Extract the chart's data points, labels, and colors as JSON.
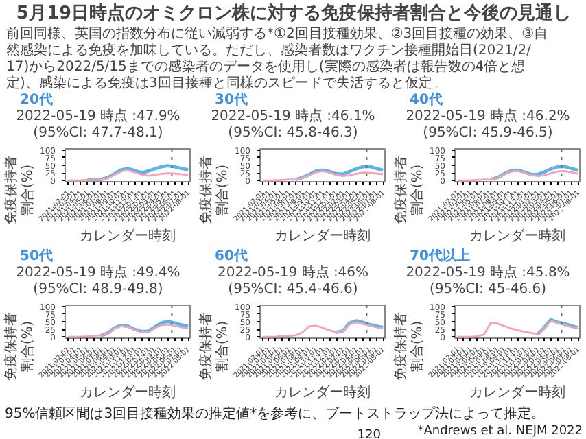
{
  "chart_data": [
    {
      "type": "other",
      "title": "5月19日時点のオミクロン株に対する免疫保持者割合と今後の見通し",
      "subtitle": "前回同様、英国の指数分布に従い減弱する*①2回目接種効果、②3回目接種の効果、③自然感染による免疫を加味している。ただし、感染者数はワクチン接種開始日(2021/2/17)から2022/5/15までの感染者のデータを使用し(実際の感染者は報告数の4倍と想定)、感染による免疫は3回目接種と同様のスピードで失活すると仮定。",
      "annotations": [
        "95%信頼区間は3回目接種効果の推定値*を参考に、ブートストラップ法によって推定。",
        "*Andrews et al. NEJM 2022",
        "120"
      ]
    },
    {
      "type": "line",
      "title": "20代",
      "subtitle": "2022-05-19 時点 :47.9% (95%CI: 47.7-48.1)",
      "xlabel": "カレンダー時刻",
      "ylabel": "免疫保持者割合(%)",
      "x": [
        "2021-02-01",
        "2021-03-01",
        "2021-04-01",
        "2021-05-01",
        "2021-06-01",
        "2021-07-01",
        "2021-08-01",
        "2021-09-01",
        "2021-10-01",
        "2021-11-01",
        "2021-12-01",
        "2022-01-01",
        "2022-02-01",
        "2022-03-01",
        "2022-04-01",
        "2022-05-01",
        "2022-06-01",
        "2022-07-01",
        "2022-08-01"
      ],
      "series": [
        {
          "color": "#5ab4e8",
          "values": [
            null,
            null,
            null,
            2,
            3,
            3.5,
            10,
            22,
            35,
            39,
            33,
            25.5,
            31,
            38,
            45,
            48.5,
            45,
            40,
            35
          ]
        },
        {
          "color": "#f4a3b6",
          "values": [
            0,
            0,
            1,
            2,
            2.5,
            3,
            8,
            19,
            30,
            34,
            27,
            20,
            16,
            18,
            22,
            24,
            23,
            21,
            18.5
          ]
        }
      ],
      "xlim": [
        "2021-01-20",
        "2022-08-10"
      ],
      "ylim": [
        -4,
        104
      ],
      "yticks": [
        0,
        25,
        50,
        75,
        100
      ],
      "xticks": [
        "2021-02-01",
        "2021-03-01",
        "2021-04-01",
        "2021-05-01",
        "2021-06-01",
        "2021-07-01",
        "2021-08-01",
        "2021-09-01",
        "2021-10-01",
        "2021-11-01",
        "2021-12-01",
        "2022-01-01",
        "2022-02-01",
        "2022-03-01",
        "2022-04-01",
        "2022-05-01",
        "2022-06-01",
        "2022-07-01",
        "2022-08-01"
      ],
      "ref_lines": [
        {
          "axis": "x",
          "value": "2022-05-19",
          "color": "#666666",
          "line_style": "dotted"
        }
      ],
      "grid": false
    },
    {
      "type": "line",
      "title": "30代",
      "subtitle": "2022-05-19 時点 :46.1% (95%CI: 45.8-46.3)",
      "xlabel": "カレンダー時刻",
      "ylabel": "免疫保持者割合(%)",
      "x": [
        "2021-02-01",
        "2021-03-01",
        "2021-04-01",
        "2021-05-01",
        "2021-06-01",
        "2021-07-01",
        "2021-08-01",
        "2021-09-01",
        "2021-10-01",
        "2021-11-01",
        "2021-12-01",
        "2022-01-01",
        "2022-02-01",
        "2022-03-01",
        "2022-04-01",
        "2022-05-01",
        "2022-06-01",
        "2022-07-01",
        "2022-08-01"
      ],
      "series": [
        {
          "color": "#5ab4e8",
          "values": [
            null,
            null,
            null,
            null,
            null,
            4,
            10,
            20,
            31,
            34,
            30,
            22,
            21,
            29,
            38,
            45,
            46,
            40,
            34
          ]
        },
        {
          "color": "#f4a3b6",
          "values": [
            0,
            0,
            1,
            2,
            3.5,
            4,
            9,
            18,
            27,
            31,
            26,
            18,
            15,
            17,
            22,
            26,
            25,
            23,
            21
          ]
        }
      ],
      "xlim": [
        "2021-01-20",
        "2022-08-10"
      ],
      "ylim": [
        -4,
        104
      ],
      "yticks": [
        0,
        25,
        50,
        75,
        100
      ],
      "xticks": [
        "2021-02-01",
        "2021-03-01",
        "2021-04-01",
        "2021-05-01",
        "2021-06-01",
        "2021-07-01",
        "2021-08-01",
        "2021-09-01",
        "2021-10-01",
        "2021-11-01",
        "2021-12-01",
        "2022-01-01",
        "2022-02-01",
        "2022-03-01",
        "2022-04-01",
        "2022-05-01",
        "2022-06-01",
        "2022-07-01",
        "2022-08-01"
      ],
      "ref_lines": [
        {
          "axis": "x",
          "value": "2022-05-19",
          "color": "#666666",
          "line_style": "dotted"
        }
      ],
      "grid": false
    },
    {
      "type": "line",
      "title": "40代",
      "subtitle": "2022-05-19 時点 :46.2% (95%CI: 45.9-46.5)",
      "xlabel": "カレンダー時刻",
      "ylabel": "免疫保持者割合(%)",
      "x": [
        "2021-02-01",
        "2021-03-01",
        "2021-04-01",
        "2021-05-01",
        "2021-06-01",
        "2021-07-01",
        "2021-08-01",
        "2021-09-01",
        "2021-10-01",
        "2021-11-01",
        "2021-12-01",
        "2022-01-01",
        "2022-02-01",
        "2022-03-01",
        "2022-04-01",
        "2022-05-01",
        "2022-06-01",
        "2022-07-01",
        "2022-08-01"
      ],
      "series": [
        {
          "color": "#5ab4e8",
          "values": [
            null,
            null,
            null,
            null,
            null,
            4,
            10,
            22,
            32,
            34,
            28,
            20,
            20,
            28,
            38,
            45,
            46,
            40,
            34
          ]
        },
        {
          "color": "#f4a3b6",
          "values": [
            0,
            0,
            1,
            2,
            3.5,
            4,
            9,
            20,
            30,
            32,
            26,
            18,
            15,
            17,
            24,
            30,
            31,
            27,
            23
          ]
        }
      ],
      "xlim": [
        "2021-01-20",
        "2022-08-10"
      ],
      "ylim": [
        -4,
        104
      ],
      "yticks": [
        0,
        25,
        50,
        75,
        100
      ],
      "xticks": [
        "2021-02-01",
        "2021-03-01",
        "2021-04-01",
        "2021-05-01",
        "2021-06-01",
        "2021-07-01",
        "2021-08-01",
        "2021-09-01",
        "2021-10-01",
        "2021-11-01",
        "2021-12-01",
        "2022-01-01",
        "2022-02-01",
        "2022-03-01",
        "2022-04-01",
        "2022-05-01",
        "2022-06-01",
        "2022-07-01",
        "2022-08-01"
      ],
      "ref_lines": [
        {
          "axis": "x",
          "value": "2022-05-19",
          "color": "#666666",
          "line_style": "dotted"
        }
      ],
      "grid": false
    },
    {
      "type": "line",
      "title": "50代",
      "subtitle": "2022-05-19 時点 :49.4% (95%CI: 48.9-49.8)",
      "xlabel": "カレンダー時刻",
      "ylabel": "免疫保持者割合(%)",
      "x": [
        "2021-02-01",
        "2021-03-01",
        "2021-04-01",
        "2021-05-01",
        "2021-06-01",
        "2021-07-01",
        "2021-08-01",
        "2021-09-01",
        "2021-10-01",
        "2021-11-01",
        "2021-12-01",
        "2022-01-01",
        "2022-02-01",
        "2022-03-01",
        "2022-04-01",
        "2022-05-01",
        "2022-06-01",
        "2022-07-01",
        "2022-08-01"
      ],
      "series": [
        {
          "color": "#5ab4e8",
          "values": [
            null,
            null,
            null,
            null,
            null,
            4.5,
            12,
            30,
            38,
            35,
            25,
            18,
            18,
            32,
            46,
            51,
            46,
            40,
            34.5
          ]
        },
        {
          "color": "#f4a3b6",
          "values": [
            0,
            0,
            1,
            2,
            4,
            4.5,
            11,
            28,
            36,
            33,
            23,
            16,
            15,
            28,
            39,
            41,
            37,
            32,
            27
          ]
        }
      ],
      "xlim": [
        "2021-01-20",
        "2022-08-10"
      ],
      "ylim": [
        -4,
        104
      ],
      "yticks": [
        0,
        25,
        50,
        75,
        100
      ],
      "xticks": [
        "2021-02-01",
        "2021-03-01",
        "2021-04-01",
        "2021-05-01",
        "2021-06-01",
        "2021-07-01",
        "2021-08-01",
        "2021-09-01",
        "2021-10-01",
        "2021-11-01",
        "2021-12-01",
        "2022-01-01",
        "2022-02-01",
        "2022-03-01",
        "2022-04-01",
        "2022-05-01",
        "2022-06-01",
        "2022-07-01",
        "2022-08-01"
      ],
      "ref_lines": [
        {
          "axis": "x",
          "value": "2022-05-19",
          "color": "#666666",
          "line_style": "dotted"
        }
      ],
      "grid": false
    },
    {
      "type": "line",
      "title": "60代",
      "subtitle": "2022-05-19 時点 :46% (95%CI: 45.4-46.6)",
      "xlabel": "カレンダー時刻",
      "ylabel": "免疫保持者割合(%)",
      "x": [
        "2021-02-01",
        "2021-03-01",
        "2021-04-01",
        "2021-05-01",
        "2021-06-01",
        "2021-07-01",
        "2021-08-01",
        "2021-09-01",
        "2021-10-01",
        "2021-11-01",
        "2021-12-01",
        "2022-01-01",
        "2022-02-01",
        "2022-03-01",
        "2022-04-01",
        "2022-05-01",
        "2022-06-01",
        "2022-07-01",
        "2022-08-01"
      ],
      "series": [
        {
          "color": "#5ab4e8",
          "values": [
            null,
            null,
            null,
            null,
            null,
            null,
            null,
            null,
            null,
            null,
            null,
            15,
            20,
            45,
            53,
            48,
            41,
            36,
            31
          ]
        },
        {
          "color": "#f4a3b6",
          "values": [
            0,
            0,
            1,
            2.5,
            3.5,
            5,
            15,
            35,
            37,
            30,
            22,
            15,
            19,
            41,
            48,
            43,
            37,
            32,
            27
          ]
        }
      ],
      "xlim": [
        "2021-01-20",
        "2022-08-10"
      ],
      "ylim": [
        -4,
        104
      ],
      "yticks": [
        0,
        25,
        50,
        75,
        100
      ],
      "xticks": [
        "2021-02-01",
        "2021-03-01",
        "2021-04-01",
        "2021-05-01",
        "2021-06-01",
        "2021-07-01",
        "2021-08-01",
        "2021-09-01",
        "2021-10-01",
        "2021-11-01",
        "2021-12-01",
        "2022-01-01",
        "2022-02-01",
        "2022-03-01",
        "2022-04-01",
        "2022-05-01",
        "2022-06-01",
        "2022-07-01",
        "2022-08-01"
      ],
      "ref_lines": [
        {
          "axis": "x",
          "value": "2022-05-19",
          "color": "#666666",
          "line_style": "dotted"
        }
      ],
      "grid": false
    },
    {
      "type": "line",
      "title": "70代以上",
      "subtitle": "2022-05-19 時点 :45.8% (95%CI: 45-46.6)",
      "xlabel": "カレンダー時刻",
      "ylabel": "免疫保持者割合(%)",
      "x": [
        "2021-02-01",
        "2021-03-01",
        "2021-04-01",
        "2021-05-01",
        "2021-06-01",
        "2021-07-01",
        "2021-08-01",
        "2021-09-01",
        "2021-10-01",
        "2021-11-01",
        "2021-12-01",
        "2022-01-01",
        "2022-02-01",
        "2022-03-01",
        "2022-04-01",
        "2022-05-01",
        "2022-06-01",
        "2022-07-01",
        "2022-08-01"
      ],
      "series": [
        {
          "color": "#5ab4e8",
          "values": [
            null,
            null,
            null,
            null,
            null,
            null,
            null,
            null,
            null,
            null,
            null,
            null,
            10,
            30,
            57,
            48,
            44,
            37,
            31
          ]
        },
        {
          "color": "#f4a3b6",
          "values": [
            0,
            0,
            0,
            2,
            8,
            46,
            44,
            36,
            28,
            22,
            17,
            13,
            10,
            29,
            53,
            45,
            39,
            33,
            28
          ]
        }
      ],
      "xlim": [
        "2021-01-20",
        "2022-08-10"
      ],
      "ylim": [
        -4,
        104
      ],
      "yticks": [
        0,
        25,
        50,
        75,
        100
      ],
      "xticks": [
        "2021-02-01",
        "2021-03-01",
        "2021-04-01",
        "2021-05-01",
        "2021-06-01",
        "2021-07-01",
        "2021-08-01",
        "2021-09-01",
        "2021-10-01",
        "2021-11-01",
        "2021-12-01",
        "2022-01-01",
        "2022-02-01",
        "2022-03-01",
        "2022-04-01",
        "2022-05-01",
        "2022-06-01",
        "2022-07-01",
        "2022-08-01"
      ],
      "ref_lines": [
        {
          "axis": "x",
          "value": "2022-05-19",
          "color": "#666666",
          "line_style": "dotted"
        }
      ],
      "grid": false
    }
  ]
}
